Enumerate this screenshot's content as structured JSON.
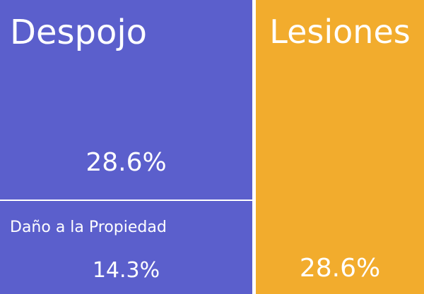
{
  "chart_data": {
    "type": "treemap",
    "categories": [
      "Despojo",
      "Daño a la Propiedad",
      "Lesiones"
    ],
    "values": [
      28.6,
      14.3,
      28.6
    ],
    "labels": [
      "28.6%",
      "14.3%",
      "28.6%"
    ],
    "colors": {
      "Despojo": "#5b5fcc",
      "Daño a la Propiedad": "#5b5fcc",
      "Lesiones": "#f2ac2d"
    },
    "unit": "%"
  }
}
